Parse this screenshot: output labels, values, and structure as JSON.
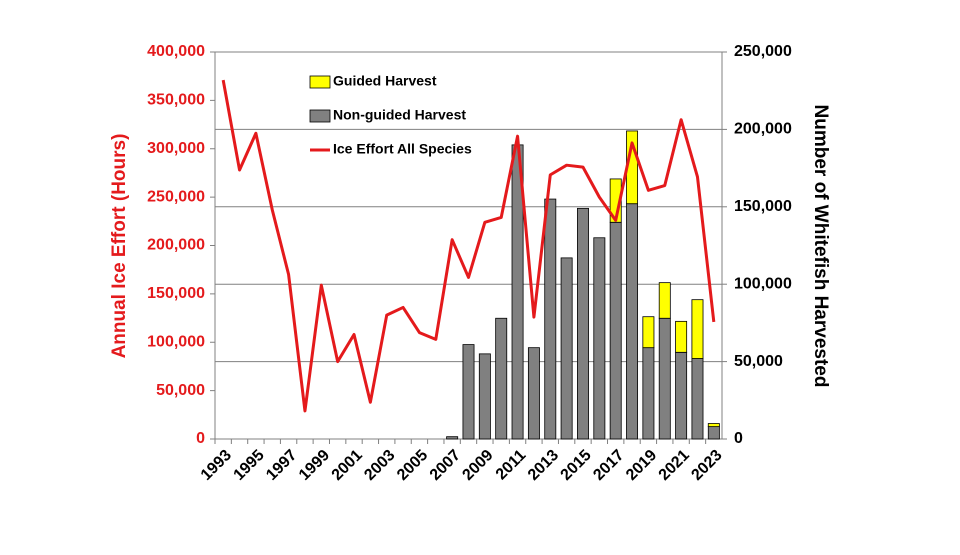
{
  "chart_data": {
    "type": "combo",
    "y_label": "Annual Ice Effort (Hours)",
    "y2_label": "Number of Whitefish Harvested",
    "categories": [
      "1993",
      null,
      "1995",
      null,
      "1997",
      null,
      "1999",
      null,
      "2001",
      null,
      "2003",
      null,
      "2005",
      null,
      "2007",
      null,
      "2009",
      null,
      "2011",
      null,
      "2013",
      null,
      "2015",
      null,
      "2017",
      null,
      "2019",
      null,
      "2021",
      null,
      "2023"
    ],
    "series": [
      {
        "name": "Guided Harvest",
        "type": "bar",
        "axis": "y2",
        "color": "#ffff00",
        "values": [
          null,
          null,
          null,
          null,
          null,
          null,
          null,
          null,
          null,
          null,
          null,
          null,
          null,
          null,
          null,
          null,
          null,
          null,
          null,
          null,
          null,
          null,
          null,
          null,
          28000,
          47000,
          20000,
          23000,
          20000,
          38000,
          2000
        ]
      },
      {
        "name": "Non-guided Harvest",
        "type": "bar",
        "axis": "y2",
        "color": "#808080",
        "values": [
          null,
          null,
          null,
          null,
          null,
          null,
          null,
          null,
          null,
          null,
          null,
          null,
          null,
          null,
          1500,
          61000,
          55000,
          78000,
          190000,
          59000,
          155000,
          117000,
          149000,
          130000,
          140000,
          152000,
          59000,
          78000,
          56000,
          52000,
          8000
        ]
      },
      {
        "name": "Ice Effort All Species",
        "type": "line",
        "color": "#e41a1c",
        "values": [
          371000,
          278000,
          316000,
          237000,
          170000,
          29000,
          159000,
          80000,
          108000,
          38000,
          128000,
          136000,
          110000,
          103000,
          206000,
          167000,
          224000,
          229000,
          313000,
          126000,
          273000,
          283000,
          281000,
          250000,
          226000,
          306000,
          257000,
          262000,
          330000,
          271000,
          121000
        ]
      }
    ],
    "ylim": [
      0,
      400000
    ],
    "yticks": [
      0,
      {
        "value": 50000,
        "label": "50,000"
      },
      {
        "value": 100000,
        "label": "100,000"
      },
      {
        "value": 150000,
        "label": "150,000"
      },
      {
        "value": 200000,
        "label": "200,000"
      },
      {
        "value": 250000,
        "label": "250,000"
      },
      {
        "value": 300000,
        "label": "300,000"
      },
      {
        "value": 350000,
        "label": "350,000"
      },
      {
        "value": 400000,
        "label": "400,000"
      }
    ],
    "y2lim": [
      0,
      250000
    ],
    "y2ticks": [
      0,
      {
        "value": 50000,
        "label": "50,000"
      },
      {
        "value": 100000,
        "label": "100,000"
      },
      {
        "value": 150000,
        "label": "150,000"
      },
      {
        "value": 200000,
        "label": "200,000"
      },
      {
        "value": 250000,
        "label": "250,000"
      }
    ],
    "grid": "y2"
  }
}
